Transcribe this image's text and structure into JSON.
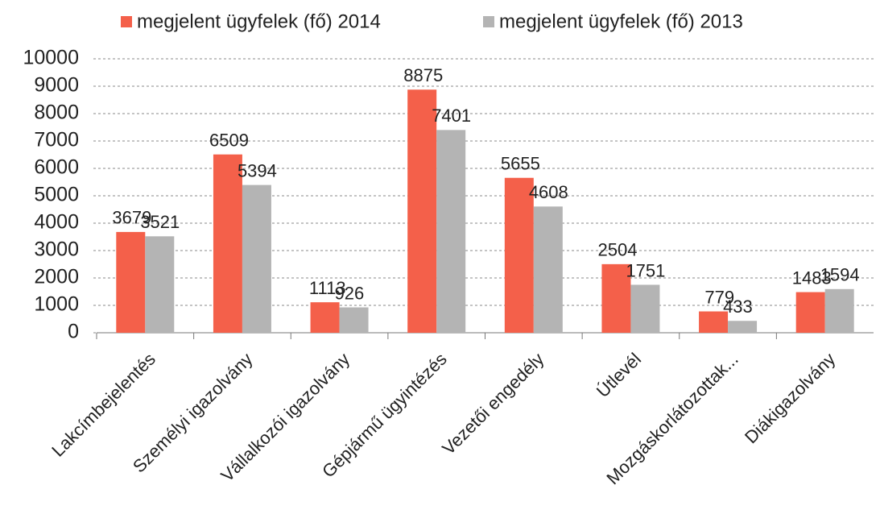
{
  "chart_data": {
    "type": "bar",
    "categories": [
      "Lakcímbejelentés",
      "Személyi igazolvány",
      "Vállalkozói igazolvány",
      "Gépjármű ügyintézés",
      "Vezetői engedély",
      "Útlevél",
      "Mozgáskorlátozottak...",
      "Diákigazolvány"
    ],
    "series": [
      {
        "name": "megjelent ügyfelek  (fő) 2014",
        "color": "#f4604a",
        "values": [
          3679,
          6509,
          1113,
          8875,
          5655,
          2504,
          779,
          1483
        ]
      },
      {
        "name": "megjelent ügyfelek (fő) 2013",
        "color": "#b4b4b4",
        "values": [
          3521,
          5394,
          926,
          7401,
          4608,
          1751,
          433,
          1594
        ]
      }
    ],
    "ylim": [
      0,
      10000
    ],
    "yticks": [
      0,
      1000,
      2000,
      3000,
      4000,
      5000,
      6000,
      7000,
      8000,
      9000,
      10000
    ],
    "grid": true,
    "legend": "top"
  }
}
